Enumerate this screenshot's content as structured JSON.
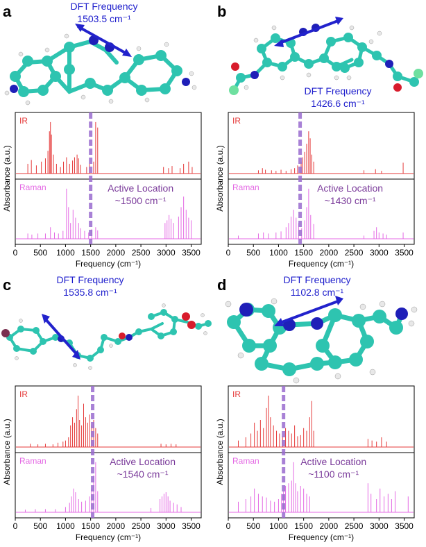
{
  "colors": {
    "ir": "#e53a3a",
    "raman": "#e46ae4",
    "marker": "#9a6ccf",
    "dft_text": "#1c1ccc",
    "active_text": "#7a3a9a",
    "carbon": "#2ec4b0",
    "nitrogen": "#1f1fb8",
    "oxygen": "#d81c2c",
    "fluorine": "#6ee0a0",
    "bromine": "#7a3050",
    "hydrogen": "#e8e8e8",
    "arrow": "#2222cc"
  },
  "chart_data": [
    {
      "type": "line",
      "panel_label": "a",
      "dft_title": "DFT Frequency",
      "dft_value": "1503.5 cm⁻¹",
      "active_title": "Active Location",
      "active_value": "~1500 cm⁻¹",
      "marker_x": 1500,
      "series": [
        {
          "name": "IR",
          "peaks": [
            [
              250,
              0.18
            ],
            [
              320,
              0.25
            ],
            [
              420,
              0.15
            ],
            [
              520,
              0.22
            ],
            [
              600,
              0.28
            ],
            [
              650,
              0.42
            ],
            [
              680,
              0.78
            ],
            [
              700,
              0.95
            ],
            [
              720,
              0.72
            ],
            [
              760,
              0.35
            ],
            [
              820,
              0.18
            ],
            [
              900,
              0.12
            ],
            [
              960,
              0.22
            ],
            [
              1020,
              0.3
            ],
            [
              1080,
              0.18
            ],
            [
              1140,
              0.24
            ],
            [
              1180,
              0.3
            ],
            [
              1230,
              0.35
            ],
            [
              1260,
              0.28
            ],
            [
              1300,
              0.16
            ],
            [
              1420,
              0.12
            ],
            [
              1480,
              0.18
            ],
            [
              1560,
              0.22
            ],
            [
              1600,
              0.95
            ],
            [
              1640,
              0.85
            ],
            [
              2950,
              0.12
            ],
            [
              3050,
              0.1
            ],
            [
              3120,
              0.14
            ],
            [
              3280,
              0.1
            ],
            [
              3350,
              0.18
            ],
            [
              3450,
              0.22
            ],
            [
              3520,
              0.12
            ]
          ]
        },
        {
          "name": "Raman",
          "peaks": [
            [
              250,
              0.1
            ],
            [
              330,
              0.08
            ],
            [
              450,
              0.1
            ],
            [
              600,
              0.1
            ],
            [
              700,
              0.22
            ],
            [
              780,
              0.12
            ],
            [
              860,
              0.1
            ],
            [
              950,
              0.15
            ],
            [
              1020,
              0.95
            ],
            [
              1060,
              0.6
            ],
            [
              1100,
              0.3
            ],
            [
              1150,
              0.55
            ],
            [
              1200,
              0.4
            ],
            [
              1260,
              0.3
            ],
            [
              1300,
              0.2
            ],
            [
              1380,
              0.15
            ],
            [
              1460,
              0.12
            ],
            [
              1520,
              0.18
            ],
            [
              1600,
              0.22
            ],
            [
              1640,
              0.16
            ],
            [
              2980,
              0.3
            ],
            [
              3020,
              0.35
            ],
            [
              3060,
              0.45
            ],
            [
              3100,
              0.38
            ],
            [
              3150,
              0.3
            ],
            [
              3250,
              0.42
            ],
            [
              3300,
              0.6
            ],
            [
              3350,
              0.8
            ],
            [
              3400,
              0.55
            ],
            [
              3450,
              0.4
            ],
            [
              3500,
              0.35
            ]
          ]
        }
      ],
      "ir_label": "IR",
      "raman_label": "Raman",
      "xlabel": "Frequency (cm⁻¹)",
      "ylabel": "Absorbance (a.u.)",
      "xlim": [
        0,
        3700
      ],
      "xticks": [
        "0",
        "500",
        "1000",
        "1500",
        "2000",
        "2500",
        "3000",
        "3500"
      ]
    },
    {
      "type": "line",
      "panel_label": "b",
      "dft_title": "DFT Frequency",
      "dft_value": "1426.6 cm⁻¹",
      "active_title": "Active Location",
      "active_value": "~1430 cm⁻¹",
      "marker_x": 1430,
      "series": [
        {
          "name": "IR",
          "peaks": [
            [
              600,
              0.06
            ],
            [
              680,
              0.1
            ],
            [
              740,
              0.07
            ],
            [
              860,
              0.06
            ],
            [
              950,
              0.05
            ],
            [
              1050,
              0.07
            ],
            [
              1150,
              0.05
            ],
            [
              1250,
              0.08
            ],
            [
              1320,
              0.1
            ],
            [
              1380,
              0.15
            ],
            [
              1450,
              0.22
            ],
            [
              1480,
              0.3
            ],
            [
              1520,
              0.4
            ],
            [
              1560,
              0.55
            ],
            [
              1600,
              0.78
            ],
            [
              1630,
              0.65
            ],
            [
              1660,
              0.35
            ],
            [
              1700,
              0.22
            ],
            [
              2700,
              0.06
            ],
            [
              2930,
              0.08
            ],
            [
              3050,
              0.05
            ],
            [
              3480,
              0.2
            ]
          ]
        },
        {
          "name": "Raman",
          "peaks": [
            [
              200,
              0.06
            ],
            [
              600,
              0.1
            ],
            [
              700,
              0.12
            ],
            [
              800,
              0.1
            ],
            [
              950,
              0.12
            ],
            [
              1050,
              0.14
            ],
            [
              1150,
              0.22
            ],
            [
              1200,
              0.3
            ],
            [
              1250,
              0.42
            ],
            [
              1300,
              0.55
            ],
            [
              1350,
              0.4
            ],
            [
              1400,
              0.3
            ],
            [
              1460,
              0.2
            ],
            [
              1520,
              0.35
            ],
            [
              1560,
              0.6
            ],
            [
              1600,
              0.95
            ],
            [
              1640,
              0.45
            ],
            [
              1700,
              0.28
            ],
            [
              2700,
              0.06
            ],
            [
              2900,
              0.15
            ],
            [
              2950,
              0.22
            ],
            [
              3000,
              0.12
            ],
            [
              3080,
              0.1
            ],
            [
              3150,
              0.08
            ],
            [
              3480,
              0.12
            ]
          ]
        }
      ],
      "ir_label": "IR",
      "raman_label": "Raman",
      "xlabel": "Frequency (cm⁻¹)",
      "ylabel": "Absorbance (a.u.)",
      "xlim": [
        0,
        3700
      ],
      "xticks": [
        "0",
        "500",
        "1000",
        "1500",
        "2000",
        "2500",
        "3000",
        "3500"
      ]
    },
    {
      "type": "line",
      "panel_label": "c",
      "dft_title": "DFT Frequency",
      "dft_value": "1535.8 cm⁻¹",
      "active_title": "Active Location",
      "active_value": "~1540 cm⁻¹",
      "marker_x": 1540,
      "series": [
        {
          "name": "IR",
          "peaks": [
            [
              300,
              0.06
            ],
            [
              450,
              0.05
            ],
            [
              600,
              0.06
            ],
            [
              750,
              0.05
            ],
            [
              850,
              0.08
            ],
            [
              950,
              0.1
            ],
            [
              1000,
              0.12
            ],
            [
              1060,
              0.18
            ],
            [
              1100,
              0.4
            ],
            [
              1140,
              0.55
            ],
            [
              1180,
              0.45
            ],
            [
              1220,
              0.7
            ],
            [
              1250,
              0.95
            ],
            [
              1280,
              0.5
            ],
            [
              1320,
              0.4
            ],
            [
              1360,
              0.8
            ],
            [
              1400,
              0.55
            ],
            [
              1440,
              0.45
            ],
            [
              1480,
              0.6
            ],
            [
              1520,
              0.4
            ],
            [
              1560,
              0.5
            ],
            [
              1600,
              0.35
            ],
            [
              1640,
              0.25
            ],
            [
              2900,
              0.06
            ],
            [
              3000,
              0.05
            ],
            [
              3100,
              0.06
            ],
            [
              3200,
              0.05
            ]
          ]
        },
        {
          "name": "Raman",
          "peaks": [
            [
              200,
              0.05
            ],
            [
              400,
              0.06
            ],
            [
              600,
              0.06
            ],
            [
              800,
              0.06
            ],
            [
              1000,
              0.1
            ],
            [
              1080,
              0.18
            ],
            [
              1120,
              0.3
            ],
            [
              1160,
              0.45
            ],
            [
              1200,
              0.38
            ],
            [
              1260,
              0.25
            ],
            [
              1320,
              0.2
            ],
            [
              1400,
              0.22
            ],
            [
              1480,
              0.3
            ],
            [
              1520,
              0.45
            ],
            [
              1560,
              0.7
            ],
            [
              1600,
              0.95
            ],
            [
              1640,
              0.4
            ],
            [
              2700,
              0.08
            ],
            [
              2880,
              0.25
            ],
            [
              2920,
              0.3
            ],
            [
              2960,
              0.35
            ],
            [
              3000,
              0.38
            ],
            [
              3040,
              0.3
            ],
            [
              3080,
              0.22
            ],
            [
              3150,
              0.18
            ],
            [
              3220,
              0.15
            ],
            [
              3300,
              0.1
            ]
          ]
        }
      ],
      "ir_label": "IR",
      "raman_label": "Raman",
      "xlabel": "Frequency (cm⁻¹)",
      "ylabel": "Absorbance (a.u.)",
      "xlim": [
        0,
        3700
      ],
      "xticks": [
        "0",
        "500",
        "1000",
        "1500",
        "2000",
        "2500",
        "3000",
        "3500"
      ]
    },
    {
      "type": "line",
      "panel_label": "d",
      "dft_title": "DFT Frequency",
      "dft_value": "1102.8 cm⁻¹",
      "active_title": "Active Location",
      "active_value": "~1100 cm⁻¹",
      "marker_x": 1100,
      "series": [
        {
          "name": "IR",
          "peaks": [
            [
              200,
              0.12
            ],
            [
              350,
              0.18
            ],
            [
              450,
              0.25
            ],
            [
              520,
              0.45
            ],
            [
              580,
              0.3
            ],
            [
              640,
              0.5
            ],
            [
              700,
              0.35
            ],
            [
              760,
              0.72
            ],
            [
              800,
              0.95
            ],
            [
              840,
              0.55
            ],
            [
              900,
              0.4
            ],
            [
              960,
              0.3
            ],
            [
              1020,
              0.25
            ],
            [
              1080,
              0.2
            ],
            [
              1140,
              0.35
            ],
            [
              1200,
              0.3
            ],
            [
              1260,
              0.25
            ],
            [
              1320,
              0.4
            ],
            [
              1380,
              0.2
            ],
            [
              1440,
              0.22
            ],
            [
              1500,
              0.35
            ],
            [
              1560,
              0.3
            ],
            [
              1620,
              0.55
            ],
            [
              1660,
              0.85
            ],
            [
              1700,
              0.3
            ],
            [
              2780,
              0.15
            ],
            [
              2860,
              0.12
            ],
            [
              2950,
              0.1
            ],
            [
              3050,
              0.18
            ],
            [
              3150,
              0.1
            ]
          ]
        },
        {
          "name": "Raman",
          "peaks": [
            [
              200,
              0.2
            ],
            [
              350,
              0.25
            ],
            [
              450,
              0.3
            ],
            [
              520,
              0.45
            ],
            [
              600,
              0.35
            ],
            [
              680,
              0.3
            ],
            [
              760,
              0.28
            ],
            [
              840,
              0.22
            ],
            [
              920,
              0.2
            ],
            [
              1000,
              0.25
            ],
            [
              1060,
              0.35
            ],
            [
              1100,
              0.4
            ],
            [
              1140,
              0.5
            ],
            [
              1200,
              0.55
            ],
            [
              1260,
              0.6
            ],
            [
              1300,
              0.95
            ],
            [
              1340,
              0.55
            ],
            [
              1380,
              0.4
            ],
            [
              1440,
              0.5
            ],
            [
              1500,
              0.45
            ],
            [
              1560,
              0.35
            ],
            [
              1620,
              0.3
            ],
            [
              2780,
              0.55
            ],
            [
              2840,
              0.35
            ],
            [
              2950,
              0.25
            ],
            [
              3020,
              0.45
            ],
            [
              3100,
              0.3
            ],
            [
              3180,
              0.35
            ],
            [
              3250,
              0.25
            ],
            [
              3320,
              0.4
            ],
            [
              3580,
              0.3
            ]
          ]
        }
      ],
      "ir_label": "IR",
      "raman_label": "Raman",
      "xlabel": "Frequency (cm⁻¹)",
      "ylabel": "Absorbance (a.u.)",
      "xlim": [
        0,
        3700
      ],
      "xticks": [
        "0",
        "500",
        "1000",
        "1500",
        "2000",
        "2500",
        "3000",
        "3500"
      ]
    }
  ]
}
